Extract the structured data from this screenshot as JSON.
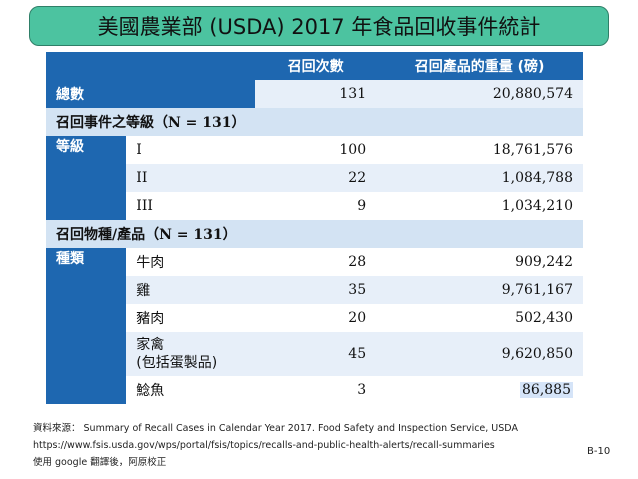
{
  "title": "美國農業部  (USDA) 2017  年食品回收事件統計",
  "table": {
    "col_count": "召回次數",
    "col_weight": "召回產品的重量 (磅)",
    "total_label": "總數",
    "total_count": "131",
    "total_weight": "20,880,574",
    "class_section": "召回事件之等級",
    "class_section_n": "（N = 131）",
    "class_label": "等級",
    "classes": [
      {
        "name": "I",
        "count": "100",
        "weight": "18,761,576"
      },
      {
        "name": "II",
        "count": "22",
        "weight": "1,084,788"
      },
      {
        "name": "III",
        "count": "9",
        "weight": "1,034,210"
      }
    ],
    "product_section": "召回物種/產品",
    "product_section_n": "（N = 131）",
    "product_label": "種類",
    "products": [
      {
        "name": "牛肉",
        "count": "28",
        "weight": "909,242"
      },
      {
        "name": "雞",
        "count": "35",
        "weight": "9,761,167"
      },
      {
        "name": "豬肉",
        "count": "20",
        "weight": "502,430"
      },
      {
        "name_line1": "家禽",
        "name_line2": "(包括蛋製品)",
        "count": "45",
        "weight": "9,620,850"
      },
      {
        "name": "鯰魚",
        "count": "3",
        "weight": "86,885"
      }
    ]
  },
  "footer": {
    "line1": "資料來源：  Summary of Recall Cases in Calendar Year 2017. Food Safety and Inspection Service, USDA",
    "line2": "https://www.fsis.usda.gov/wps/portal/fsis/topics/recalls-and-public-health-alerts/recall-summaries",
    "line3": "使用  google  翻譯後，阿原校正"
  },
  "page_number": "B-10"
}
